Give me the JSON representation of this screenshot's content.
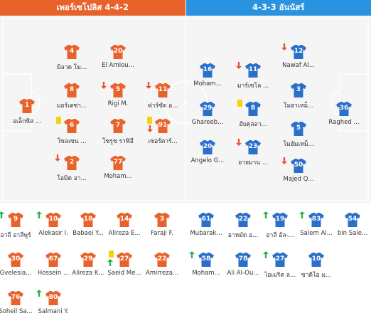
{
  "header": {
    "home_label": "เพอร์เซโปลิส 4-4-2",
    "away_label": "4-3-3 อันนัสร์"
  },
  "colors": {
    "home": "#e8632b",
    "away": "#2a6fc9",
    "sub_in": "#2bb24c",
    "sub_out": "#e8523b",
    "yellow_card": "#f5d20a"
  },
  "pitch": {
    "home": [
      {
        "num": "1",
        "name": "อเล็กซิส ...",
        "marker": null
      },
      {
        "num": "4",
        "name": "มิลาด โม...",
        "marker": null
      },
      {
        "num": "20",
        "name": "El Amlou...",
        "marker": null
      },
      {
        "num": "8",
        "name": "มอร์เตซ่า...",
        "marker": null
      },
      {
        "num": "5",
        "name": "Rigi M.",
        "marker": "out"
      },
      {
        "num": "11",
        "name": "ฟาร์ซัด อ...",
        "marker": "out"
      },
      {
        "num": "6",
        "name": "โซลเซน ...",
        "marker": "yellow"
      },
      {
        "num": "7",
        "name": "โซรูช ราฟิอี",
        "marker": null
      },
      {
        "num": "91",
        "name": "เซอร์ดาร์...",
        "marker": "yellow_out"
      },
      {
        "num": "2",
        "name": "โอมิด อา...",
        "marker": "out"
      },
      {
        "num": "77",
        "name": "Moham...",
        "marker": null
      }
    ],
    "away": [
      {
        "num": "16",
        "name": "Moham...",
        "marker": null
      },
      {
        "num": "11",
        "name": "มาร์เซโล ...",
        "marker": "out"
      },
      {
        "num": "12",
        "name": "Nawaf Al...",
        "marker": "out"
      },
      {
        "num": "3",
        "name": "โมฮาเหม็...",
        "marker": null
      },
      {
        "num": "29",
        "name": "Ghareeb...",
        "marker": null
      },
      {
        "num": "8",
        "name": "อับดุลลา...",
        "marker": "yellow"
      },
      {
        "num": "36",
        "name": "Raghed ...",
        "marker": null
      },
      {
        "num": "5",
        "name": "โมฮัมเหม็...",
        "marker": null
      },
      {
        "num": "20",
        "name": "Angelo G...",
        "marker": null
      },
      {
        "num": "23",
        "name": "อายมาน ...",
        "marker": "out"
      },
      {
        "num": "50",
        "name": "Majed Q...",
        "marker": "out"
      }
    ]
  },
  "bench": {
    "home": [
      {
        "num": "9",
        "name": "อาลี อาลีพูร์",
        "marker": "in"
      },
      {
        "num": "10",
        "name": "Alekasir I.",
        "marker": "in"
      },
      {
        "num": "18",
        "name": "Babaei Y...",
        "marker": null
      },
      {
        "num": "14",
        "name": "Alireza E...",
        "marker": null
      },
      {
        "num": "3",
        "name": "Faraji F.",
        "marker": null
      },
      {
        "num": "30",
        "name": "Gvelesia...",
        "marker": null
      },
      {
        "num": "67",
        "name": "Hossein ...",
        "marker": null
      },
      {
        "num": "29",
        "name": "Alireza K...",
        "marker": null
      },
      {
        "num": "27",
        "name": "Saeid Me...",
        "marker": "yellow_in"
      },
      {
        "num": "22",
        "name": "Amirreza...",
        "marker": null
      },
      {
        "num": "76",
        "name": "Soheil Sa...",
        "marker": null
      },
      {
        "num": "80",
        "name": "Salmani Y.",
        "marker": "in"
      }
    ],
    "away": [
      {
        "num": "61",
        "name": "Mubarak...",
        "marker": null
      },
      {
        "num": "22",
        "name": "อาหมัด อ...",
        "marker": null
      },
      {
        "num": "19",
        "name": "อาลี อัล-...",
        "marker": "in"
      },
      {
        "num": "83",
        "name": "Salem Al...",
        "marker": "in"
      },
      {
        "num": "54",
        "name": "bin Sale...",
        "marker": null
      },
      {
        "num": "58",
        "name": "Moham...",
        "marker": "in"
      },
      {
        "num": "78",
        "name": "Ali Al-Ou...",
        "marker": null
      },
      {
        "num": "27",
        "name": "ไอเมริค ล...",
        "marker": "in"
      },
      {
        "num": "10",
        "name": "ซาดิโอ ม...",
        "marker": null
      }
    ]
  }
}
